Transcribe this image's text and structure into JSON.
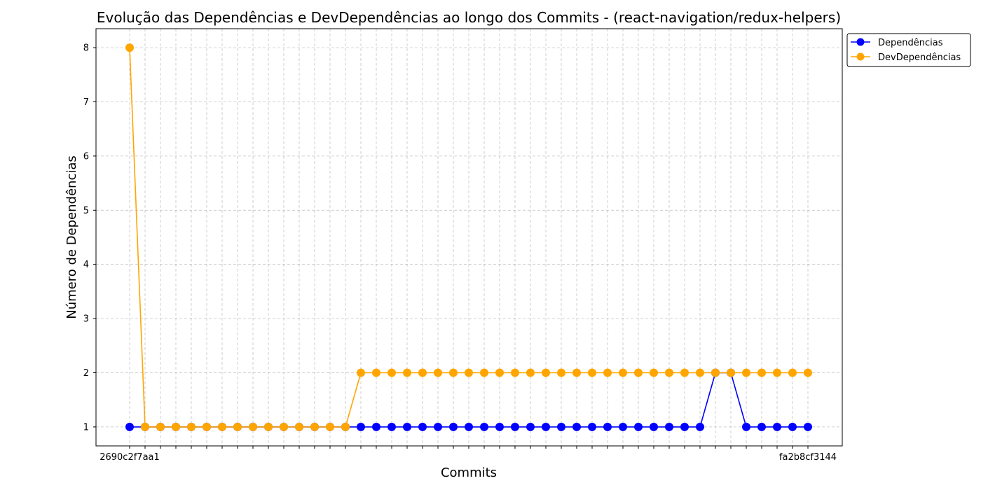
{
  "chart_data": {
    "type": "line",
    "title": "Evolução das Dependências e DevDependências ao longo dos Commits - (react-navigation/redux-helpers)",
    "xlabel": "Commits",
    "ylabel": "Número de Dependências",
    "ylim": [
      0.65,
      8.35
    ],
    "yticks": [
      1,
      2,
      3,
      4,
      5,
      6,
      7,
      8
    ],
    "grid": true,
    "legend_position": "outside-top-right",
    "first_tick_label": "2690c2f7aa1",
    "last_tick_label": "fa2b8cf3144",
    "series": [
      {
        "name": "Dependências",
        "color": "#0000ff",
        "values": [
          1,
          1,
          1,
          1,
          1,
          1,
          1,
          1,
          1,
          1,
          1,
          1,
          1,
          1,
          1,
          1,
          1,
          1,
          1,
          1,
          1,
          1,
          1,
          1,
          1,
          1,
          1,
          1,
          1,
          1,
          1,
          1,
          1,
          1,
          1,
          1,
          1,
          1,
          2,
          2,
          1,
          1,
          1,
          1,
          1
        ]
      },
      {
        "name": "DevDependências",
        "color": "#ffa500",
        "values": [
          8,
          1,
          1,
          1,
          1,
          1,
          1,
          1,
          1,
          1,
          1,
          1,
          1,
          1,
          1,
          2,
          2,
          2,
          2,
          2,
          2,
          2,
          2,
          2,
          2,
          2,
          2,
          2,
          2,
          2,
          2,
          2,
          2,
          2,
          2,
          2,
          2,
          2,
          2,
          2,
          2,
          2,
          2,
          2,
          2
        ]
      }
    ]
  }
}
